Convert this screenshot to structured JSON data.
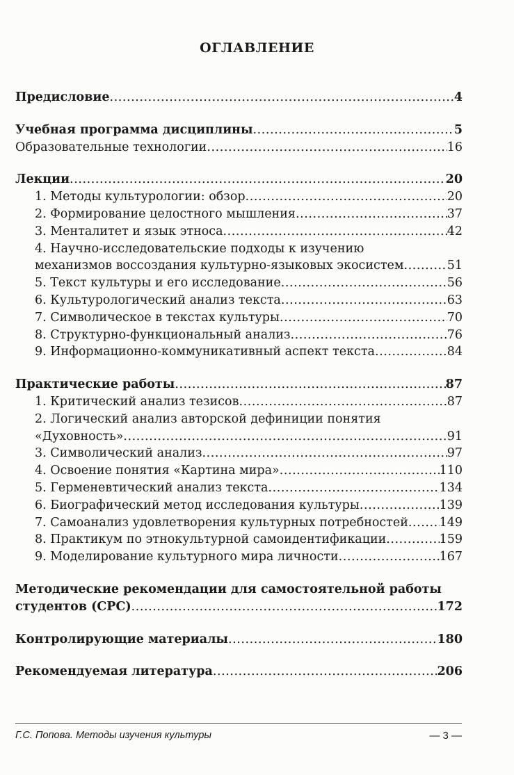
{
  "title": "ОГЛАВЛЕНИЕ",
  "entries": [
    {
      "lines": [
        "Предисловие"
      ],
      "page": "4",
      "bold": true,
      "sub": false,
      "gap": false
    },
    {
      "lines": [
        "Учебная программа дисциплины"
      ],
      "page": "5",
      "bold": true,
      "sub": false,
      "gap": true
    },
    {
      "lines": [
        "Образовательные технологии"
      ],
      "page": "16",
      "bold": false,
      "sub": false,
      "gap": false
    },
    {
      "lines": [
        "Лекции"
      ],
      "page": "20",
      "bold": true,
      "sub": false,
      "gap": true
    },
    {
      "lines": [
        "1. Методы культурологии: обзор"
      ],
      "page": "20",
      "bold": false,
      "sub": true,
      "gap": false
    },
    {
      "lines": [
        "2. Формирование целостного мышления"
      ],
      "page": "37",
      "bold": false,
      "sub": true,
      "gap": false
    },
    {
      "lines": [
        "3. Менталитет и язык этноса"
      ],
      "page": "42",
      "bold": false,
      "sub": true,
      "gap": false
    },
    {
      "lines": [
        "4. Научно-исследовательские подходы к изучению",
        "механизмов воссоздания культурно-языковых экосистем"
      ],
      "page": "51",
      "bold": false,
      "sub": true,
      "gap": false
    },
    {
      "lines": [
        "5. Текст культуры и его исследование"
      ],
      "page": "56",
      "bold": false,
      "sub": true,
      "gap": false
    },
    {
      "lines": [
        "6. Культурологический анализ текста"
      ],
      "page": "63",
      "bold": false,
      "sub": true,
      "gap": false
    },
    {
      "lines": [
        "7. Символическое в текстах культуры"
      ],
      "page": "70",
      "bold": false,
      "sub": true,
      "gap": false
    },
    {
      "lines": [
        "8. Структурно-функциональный анализ"
      ],
      "page": "76",
      "bold": false,
      "sub": true,
      "gap": false
    },
    {
      "lines": [
        "9. Информационно-коммуникативный аспект текста"
      ],
      "page": "84",
      "bold": false,
      "sub": true,
      "gap": false
    },
    {
      "lines": [
        "Практические работы"
      ],
      "page": "87",
      "bold": true,
      "sub": false,
      "gap": true
    },
    {
      "lines": [
        "1. Критический анализ тезисов"
      ],
      "page": "87",
      "bold": false,
      "sub": true,
      "gap": false
    },
    {
      "lines": [
        "2. Логический анализ авторской дефиниции понятия",
        "«Духовность»"
      ],
      "page": "91",
      "bold": false,
      "sub": true,
      "gap": false
    },
    {
      "lines": [
        "3. Символический анализ"
      ],
      "page": "97",
      "bold": false,
      "sub": true,
      "gap": false
    },
    {
      "lines": [
        "4. Освоение понятия «Картина мира»"
      ],
      "page": "110",
      "bold": false,
      "sub": true,
      "gap": false
    },
    {
      "lines": [
        "5. Герменевтический анализ текста"
      ],
      "page": "134",
      "bold": false,
      "sub": true,
      "gap": false
    },
    {
      "lines": [
        "6. Биографический метод исследования культуры"
      ],
      "page": "139",
      "bold": false,
      "sub": true,
      "gap": false
    },
    {
      "lines": [
        "7. Самоанализ удовлетворения культурных потребностей"
      ],
      "page": "149",
      "bold": false,
      "sub": true,
      "gap": false
    },
    {
      "lines": [
        "8. Практикум по этнокультурной самоидентификации"
      ],
      "page": "159",
      "bold": false,
      "sub": true,
      "gap": false
    },
    {
      "lines": [
        "9. Моделирование культурного мира личности"
      ],
      "page": "167",
      "bold": false,
      "sub": true,
      "gap": false
    },
    {
      "lines": [
        "Методические рекомендации для самостоятельной работы",
        "студентов (СРС)"
      ],
      "page": "172",
      "bold": true,
      "sub": false,
      "gap": true
    },
    {
      "lines": [
        "Контролирующие материалы"
      ],
      "page": "180",
      "bold": true,
      "sub": false,
      "gap": true
    },
    {
      "lines": [
        "Рекомендуемая литература"
      ],
      "page": "206",
      "bold": true,
      "sub": false,
      "gap": true
    }
  ],
  "footer": {
    "running_title": "Г.С. Попова. Методы изучения культуры",
    "page_number": "— 3 —"
  }
}
